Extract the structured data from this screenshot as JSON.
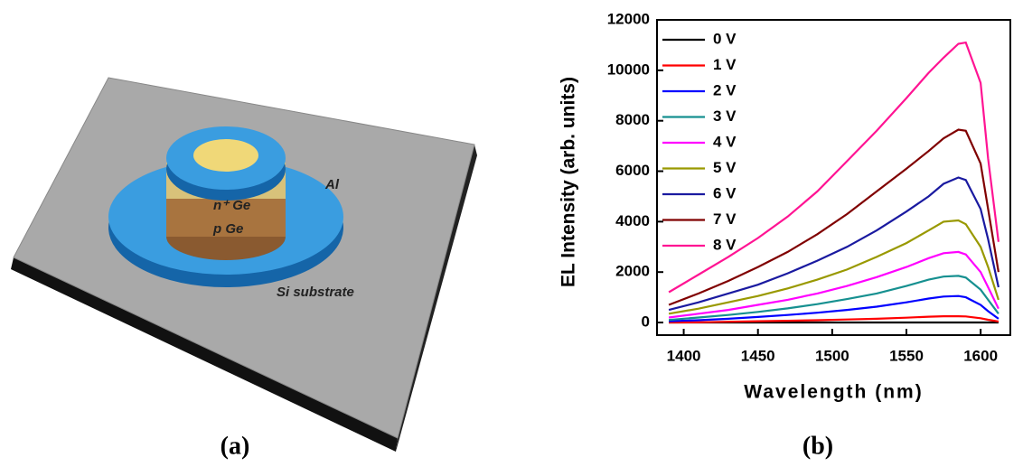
{
  "diagram": {
    "labels": [
      "Al",
      "n⁺ Ge",
      "p Ge",
      "Si substrate"
    ],
    "caption": "(a)"
  },
  "chart_data": {
    "type": "line",
    "caption": "(b)",
    "x_label": "Wavelength (nm)",
    "y_label": "EL Intensity (arb. units)",
    "x": [
      1390,
      1410,
      1430,
      1450,
      1470,
      1490,
      1510,
      1530,
      1550,
      1565,
      1575,
      1585,
      1590,
      1600,
      1605,
      1612
    ],
    "xlim": [
      1382,
      1620
    ],
    "xticks": [
      1400,
      1450,
      1500,
      1550,
      1600
    ],
    "ylim": [
      -500,
      12000
    ],
    "yticks": [
      0,
      2000,
      4000,
      6000,
      8000,
      10000,
      12000
    ],
    "legend": "upper left",
    "series": [
      {
        "name": "0 V",
        "color": "#000000",
        "values": [
          0,
          0,
          0,
          0,
          0,
          0,
          0,
          0,
          0,
          0,
          0,
          0,
          0,
          0,
          0,
          0
        ]
      },
      {
        "name": "1 V",
        "color": "#ff0000",
        "values": [
          0,
          10,
          30,
          50,
          70,
          90,
          120,
          150,
          190,
          230,
          250,
          250,
          240,
          170,
          110,
          40
        ]
      },
      {
        "name": "2 V",
        "color": "#0000ff",
        "values": [
          50,
          90,
          150,
          220,
          300,
          390,
          500,
          630,
          800,
          950,
          1030,
          1050,
          1000,
          700,
          450,
          150
        ]
      },
      {
        "name": "3 V",
        "color": "#169090",
        "values": [
          100,
          200,
          300,
          420,
          560,
          730,
          930,
          1150,
          1450,
          1700,
          1820,
          1850,
          1780,
          1300,
          900,
          350
        ]
      },
      {
        "name": "4 V",
        "color": "#ff00ff",
        "values": [
          200,
          350,
          500,
          700,
          900,
          1150,
          1450,
          1800,
          2200,
          2550,
          2750,
          2800,
          2700,
          2000,
          1400,
          550
        ]
      },
      {
        "name": "5 V",
        "color": "#999900",
        "values": [
          350,
          550,
          800,
          1050,
          1350,
          1700,
          2100,
          2600,
          3150,
          3650,
          4000,
          4050,
          3900,
          3000,
          2200,
          900
        ]
      },
      {
        "name": "6 V",
        "color": "#1a1aa0",
        "values": [
          500,
          800,
          1150,
          1500,
          1950,
          2450,
          3000,
          3650,
          4400,
          5000,
          5500,
          5750,
          5650,
          4500,
          3300,
          1400
        ]
      },
      {
        "name": "7 V",
        "color": "#800000",
        "values": [
          700,
          1150,
          1650,
          2200,
          2800,
          3500,
          4300,
          5200,
          6100,
          6800,
          7300,
          7650,
          7600,
          6300,
          4500,
          2000
        ]
      },
      {
        "name": "8 V",
        "color": "#ff1493",
        "values": [
          1200,
          1900,
          2600,
          3350,
          4200,
          5200,
          6400,
          7600,
          8900,
          9900,
          10500,
          11050,
          11100,
          9500,
          6500,
          3200
        ]
      }
    ]
  }
}
